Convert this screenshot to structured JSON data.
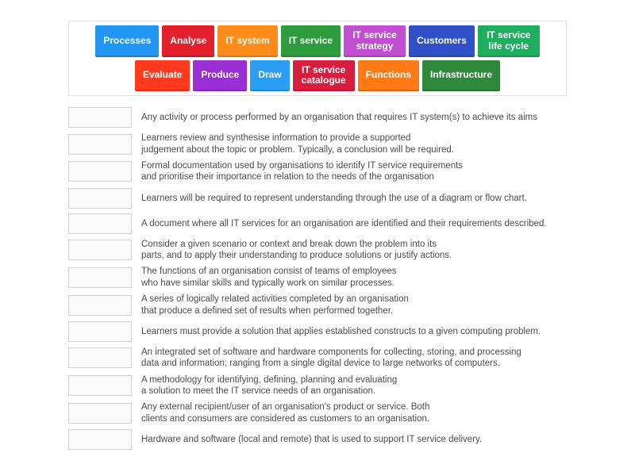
{
  "terms": [
    {
      "label": "Processes",
      "color": "#2196f3"
    },
    {
      "label": "Analyse",
      "color": "#e3202c"
    },
    {
      "label": "IT system",
      "color": "#ff8c1a"
    },
    {
      "label": "IT service",
      "color": "#2e9c3e"
    },
    {
      "label": "IT service strategy",
      "color": "#c24fd1"
    },
    {
      "label": "Customers",
      "color": "#3050c8"
    },
    {
      "label": "IT service life cycle",
      "color": "#1fae60"
    },
    {
      "label": "Evaluate",
      "color": "#ff3a1f"
    },
    {
      "label": "Produce",
      "color": "#9b2fd6"
    },
    {
      "label": "Draw",
      "color": "#2a9df4"
    },
    {
      "label": "IT service catalogue",
      "color": "#d81e3e"
    },
    {
      "label": "Functions",
      "color": "#ff7a14"
    },
    {
      "label": "Infrastructure",
      "color": "#2e8a3a"
    }
  ],
  "row1_count": 7,
  "definitions": [
    "Any activity or process performed by an organisation that requires IT system(s) to achieve its aims",
    "Learners review and synthesise information to provide a supported\njudgement about the topic or problem. Typically, a conclusion will be required.",
    "Formal documentation used by organisations to identify IT service requirements\nand prioritise their importance in relation to the needs of the organisation",
    "Learners will be required to represent understanding through the use of a diagram or flow chart.",
    "A document where all IT services for an organisation are identified and their requirements described.",
    "Consider a given scenario or context and break down the problem into its\nparts, and to apply their understanding to produce solutions or justify actions.",
    "The functions of an organisation consist of teams of employees\nwho have similar skills and typically work on similar processes.",
    "A series of logically related activities completed by an organisation\nthat produce a defined set of results when performed together.",
    "Learners must provide a solution that applies established constructs to a given computing problem.",
    "An integrated set of software and hardware components for collecting, storing, and processing\ndata and information; ranging from a single digital device to large networks of computers.",
    "A methodology for identifying, defining, planning and evaluating\na solution to meet the IT service needs of an organisation.",
    "Any external recipient/user of an organisation's product or service. Both\nclients and consumers are considered as customers to an organisation.",
    "Hardware and software (local and remote) that is used to support IT service delivery."
  ]
}
